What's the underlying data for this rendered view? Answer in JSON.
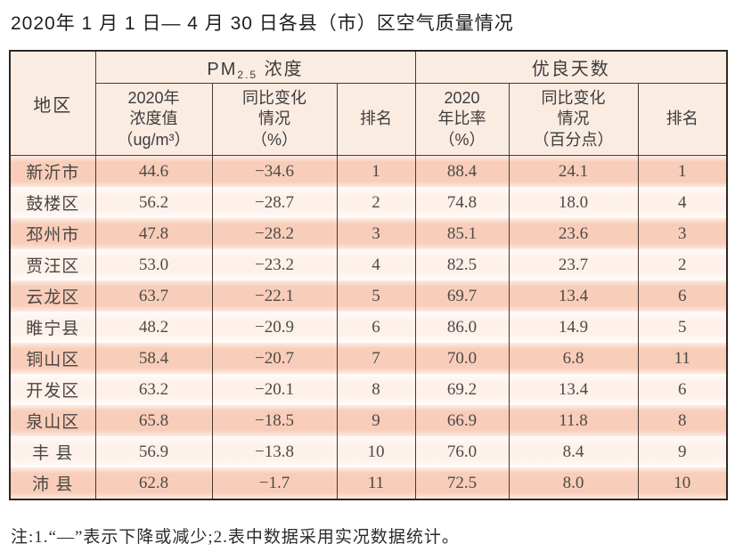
{
  "page": {
    "title": "2020年 1 月 1 日— 4 月 30 日各县（市）区空气质量情况",
    "note": "注:1.“—”表示下降或减少;2.表中数据采用实况数据统计。"
  },
  "table": {
    "region_header": "地区",
    "group_pm": {
      "prefix": "PM",
      "sub": "2.5",
      "suffix": " 浓度"
    },
    "group_good": "优良天数",
    "columns": {
      "pm_value": "2020年\n浓度值\n（ug/m³）",
      "pm_change": "同比变化\n情况\n（%）",
      "pm_rank": "排名",
      "good_ratio": "2020\n年比率\n（%）",
      "good_change": "同比变化\n情况\n（百分点）",
      "good_rank": "排名"
    },
    "chart_data": {
      "type": "table",
      "title": "2020年1月1日—4月30日各县（市）区空气质量情况",
      "columns": [
        "地区",
        "PM2.5浓度 2020年浓度值（ug/m³）",
        "PM2.5浓度 同比变化情况（%）",
        "PM2.5浓度 排名",
        "优良天数 2020年比率（%）",
        "优良天数 同比变化情况（百分点）",
        "优良天数 排名"
      ]
    },
    "rows": [
      [
        "新沂市",
        "44.6",
        "−34.6",
        "1",
        "88.4",
        "24.1",
        "1"
      ],
      [
        "鼓楼区",
        "56.2",
        "−28.7",
        "2",
        "74.8",
        "18.0",
        "4"
      ],
      [
        "邳州市",
        "47.8",
        "−28.2",
        "3",
        "85.1",
        "23.6",
        "3"
      ],
      [
        "贾汪区",
        "53.0",
        "−23.2",
        "4",
        "82.5",
        "23.7",
        "2"
      ],
      [
        "云龙区",
        "63.7",
        "−22.1",
        "5",
        "69.7",
        "13.4",
        "6"
      ],
      [
        "睢宁县",
        "48.2",
        "−20.9",
        "6",
        "86.0",
        "14.9",
        "5"
      ],
      [
        "铜山区",
        "58.4",
        "−20.7",
        "7",
        "70.0",
        "6.8",
        "11"
      ],
      [
        "开发区",
        "63.2",
        "−20.1",
        "8",
        "69.2",
        "13.4",
        "6"
      ],
      [
        "泉山区",
        "65.8",
        "−18.5",
        "9",
        "66.9",
        "11.8",
        "8"
      ],
      [
        "丰 县",
        "56.9",
        "−13.8",
        "10",
        "76.0",
        "8.4",
        "9"
      ],
      [
        "沛 县",
        "62.8",
        "−1.7",
        "11",
        "72.5",
        "8.0",
        "10"
      ]
    ],
    "colors": {
      "row_salmon": "#f8cdb9",
      "row_light": "#fdf1ea",
      "header_bg": "#fbece2",
      "border_dark": "#463a30"
    }
  }
}
